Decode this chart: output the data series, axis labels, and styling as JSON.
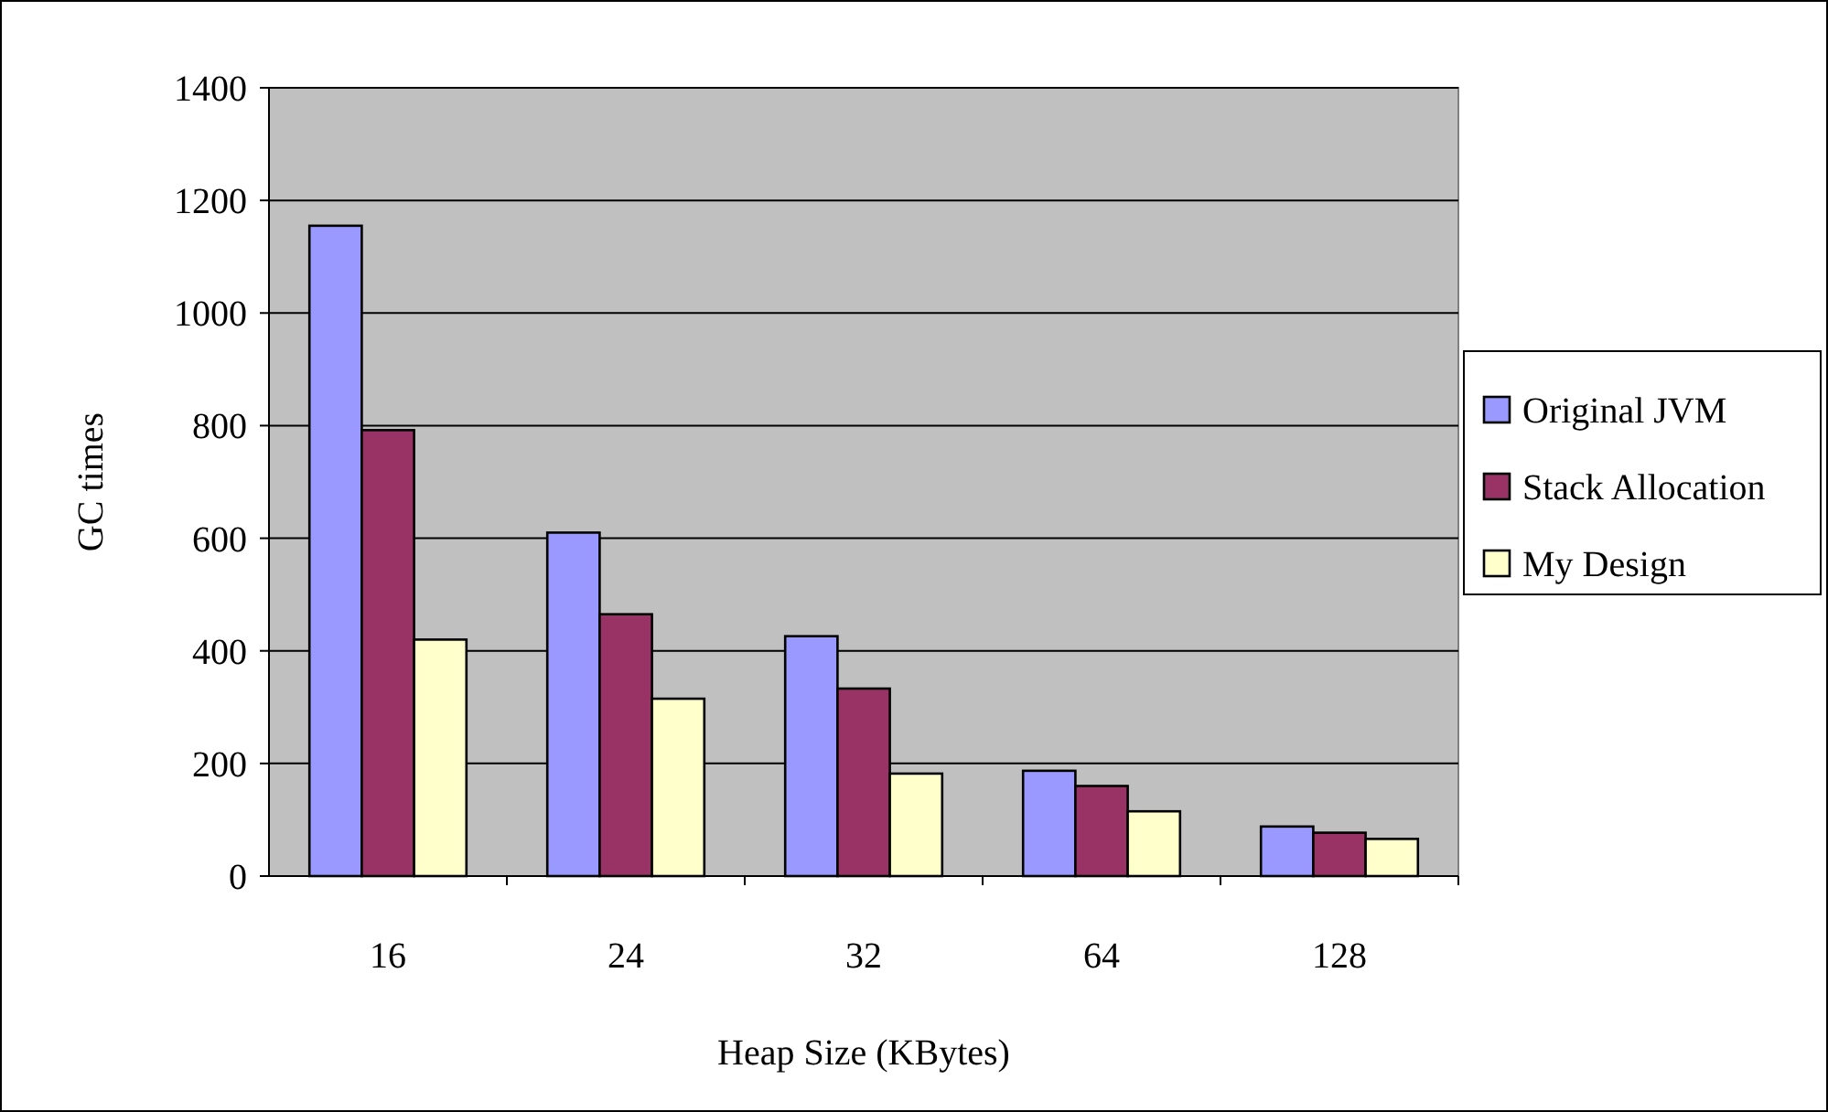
{
  "chart_data": {
    "type": "bar",
    "xlabel": "Heap Size (KBytes)",
    "ylabel": "GC times",
    "categories": [
      "16",
      "24",
      "32",
      "64",
      "128"
    ],
    "series": [
      {
        "name": "Original JVM",
        "color": "#9999ff",
        "values": [
          1155,
          610,
          426,
          187,
          88
        ]
      },
      {
        "name": "Stack Allocation",
        "color": "#993366",
        "values": [
          792,
          465,
          333,
          160,
          77
        ]
      },
      {
        "name": "My Design",
        "color": "#ffffcc",
        "values": [
          420,
          315,
          182,
          115,
          66
        ]
      }
    ],
    "ylim": [
      0,
      1400
    ],
    "yticks": [
      0,
      200,
      400,
      600,
      800,
      1000,
      1200,
      1400
    ],
    "grid": "y",
    "legend": "right"
  }
}
